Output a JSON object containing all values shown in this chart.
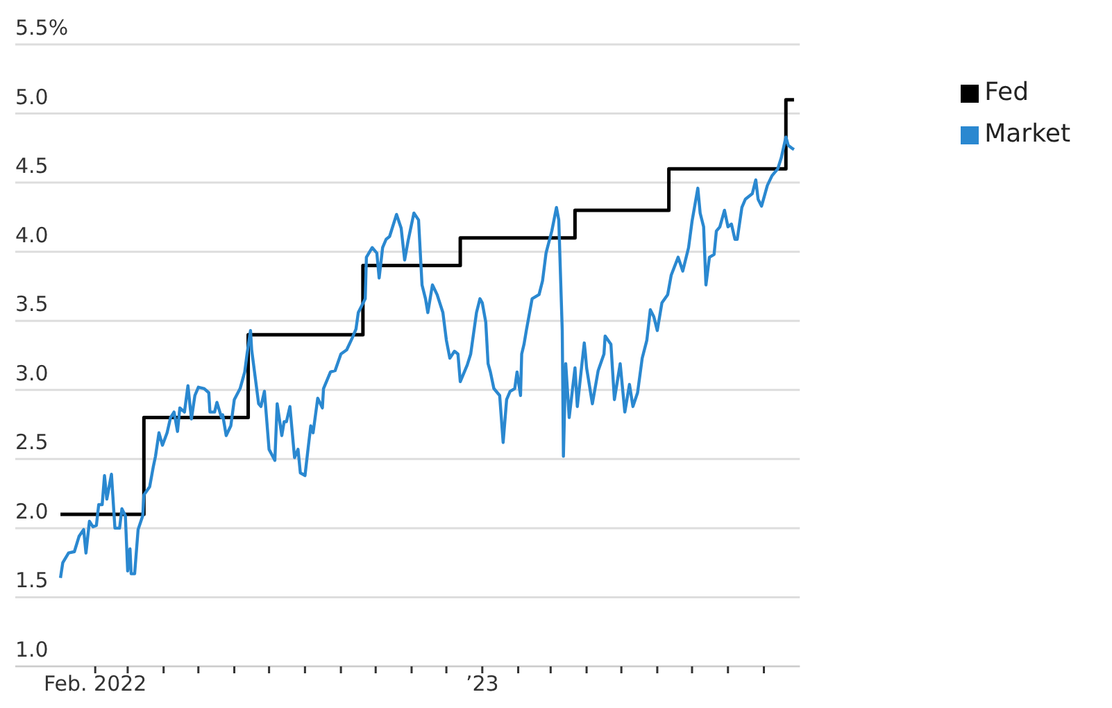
{
  "chart_data": {
    "type": "line",
    "xlim": [
      "2021-11-24",
      "2023-10-02"
    ],
    "xticks": [
      {
        "value": "2022-02-01",
        "label": "Feb. 2022"
      },
      {
        "value": "2022-03-01",
        "label": null
      },
      {
        "value": "2022-04-01",
        "label": null
      },
      {
        "value": "2022-05-01",
        "label": null
      },
      {
        "value": "2022-06-01",
        "label": null
      },
      {
        "value": "2022-07-01",
        "label": null
      },
      {
        "value": "2022-08-01",
        "label": null
      },
      {
        "value": "2022-09-01",
        "label": null
      },
      {
        "value": "2022-10-01",
        "label": null
      },
      {
        "value": "2022-11-01",
        "label": null
      },
      {
        "value": "2022-12-01",
        "label": null
      },
      {
        "value": "2023-01-01",
        "label": "’23"
      },
      {
        "value": "2023-02-01",
        "label": null
      },
      {
        "value": "2023-03-01",
        "label": null
      },
      {
        "value": "2023-04-01",
        "label": null
      },
      {
        "value": "2023-05-01",
        "label": null
      },
      {
        "value": "2023-06-01",
        "label": null
      },
      {
        "value": "2023-07-01",
        "label": null
      },
      {
        "value": "2023-08-01",
        "label": null
      },
      {
        "value": "2023-09-01",
        "label": null
      }
    ],
    "ylim": [
      1.0,
      5.5
    ],
    "yticks": [
      {
        "value": 1,
        "label": "1.0"
      },
      {
        "value": 1.5,
        "label": "1.5"
      },
      {
        "value": 2,
        "label": "2.0"
      },
      {
        "value": 2.5,
        "label": "2.5"
      },
      {
        "value": 3,
        "label": "3.0"
      },
      {
        "value": 3.5,
        "label": "3.5"
      },
      {
        "value": 4,
        "label": "4.0"
      },
      {
        "value": 4.5,
        "label": "4.5"
      },
      {
        "value": 5,
        "label": "5.0"
      },
      {
        "value": 5.5,
        "label": "5.5%"
      }
    ],
    "grid": "y",
    "legend": "top right",
    "marker": "none",
    "series": [
      {
        "name": "Fed",
        "type": "step",
        "color": "#000000",
        "x": [
          "2022-01-02",
          "2022-03-15",
          "2022-06-13",
          "2022-09-20",
          "2022-12-13",
          "2023-03-22",
          "2023-06-11",
          "2023-09-20",
          "2023-09-27"
        ],
        "values": [
          2.1,
          2.8,
          3.4,
          3.9,
          4.1,
          4.3,
          4.6,
          5.1,
          5.1
        ]
      },
      {
        "name": "Market",
        "type": "line",
        "color": "#2a88d0",
        "x": [
          "2022-01-02",
          "2022-01-04",
          "2022-01-09",
          "2022-01-14",
          "2022-01-18",
          "2022-01-22",
          "2022-01-24",
          "2022-01-27",
          "2022-01-30",
          "2022-02-02",
          "2022-02-04",
          "2022-02-07",
          "2022-02-09",
          "2022-02-11",
          "2022-02-15",
          "2022-02-18",
          "2022-02-22",
          "2022-02-24",
          "2022-02-27",
          "2022-03-01",
          "2022-03-03",
          "2022-03-04",
          "2022-03-07",
          "2022-03-10",
          "2022-03-14",
          "2022-03-15",
          "2022-03-20",
          "2022-03-23",
          "2022-03-25",
          "2022-03-28",
          "2022-03-31",
          "2022-04-04",
          "2022-04-07",
          "2022-04-10",
          "2022-04-13",
          "2022-04-15",
          "2022-04-19",
          "2022-04-22",
          "2022-04-25",
          "2022-04-28",
          "2022-05-01",
          "2022-05-06",
          "2022-05-10",
          "2022-05-11",
          "2022-05-15",
          "2022-05-17",
          "2022-05-21",
          "2022-05-22",
          "2022-05-25",
          "2022-05-29",
          "2022-06-01",
          "2022-06-06",
          "2022-06-10",
          "2022-06-12",
          "2022-06-15",
          "2022-06-16",
          "2022-06-22",
          "2022-06-24",
          "2022-06-27",
          "2022-07-01",
          "2022-07-06",
          "2022-07-08",
          "2022-07-12",
          "2022-07-14",
          "2022-07-16",
          "2022-07-19",
          "2022-07-23",
          "2022-07-26",
          "2022-07-28",
          "2022-08-01",
          "2022-08-04",
          "2022-08-06",
          "2022-08-08",
          "2022-08-12",
          "2022-08-16",
          "2022-08-17",
          "2022-08-23",
          "2022-08-27",
          "2022-09-01",
          "2022-09-06",
          "2022-09-11",
          "2022-09-14",
          "2022-09-16",
          "2022-09-22",
          "2022-09-23",
          "2022-09-28",
          "2022-10-02",
          "2022-10-04",
          "2022-10-07",
          "2022-10-10",
          "2022-10-13",
          "2022-10-19",
          "2022-10-23",
          "2022-10-26",
          "2022-10-29",
          "2022-11-03",
          "2022-11-07",
          "2022-11-10",
          "2022-11-13",
          "2022-11-15",
          "2022-11-19",
          "2022-11-23",
          "2022-11-28",
          "2022-12-01",
          "2022-12-04",
          "2022-12-08",
          "2022-12-11",
          "2022-12-13",
          "2022-12-19",
          "2022-12-22",
          "2022-12-27",
          "2022-12-30",
          "2023-01-01",
          "2023-01-04",
          "2023-01-06",
          "2023-01-08",
          "2023-01-11",
          "2023-01-16",
          "2023-01-19",
          "2023-01-22",
          "2023-01-25",
          "2023-01-29",
          "2023-01-31",
          "2023-02-03",
          "2023-02-04",
          "2023-02-06",
          "2023-02-08",
          "2023-02-13",
          "2023-02-19",
          "2023-02-22",
          "2023-02-25",
          "2023-03-02",
          "2023-03-06",
          "2023-03-08",
          "2023-03-11",
          "2023-03-12",
          "2023-03-14",
          "2023-03-17",
          "2023-03-22",
          "2023-03-24",
          "2023-03-28",
          "2023-03-30",
          "2023-03-31",
          "2023-04-01",
          "2023-04-06",
          "2023-04-11",
          "2023-04-16",
          "2023-04-17",
          "2023-04-22",
          "2023-04-25",
          "2023-04-30",
          "2023-05-04",
          "2023-05-08",
          "2023-05-11",
          "2023-05-15",
          "2023-05-19",
          "2023-05-23",
          "2023-05-26",
          "2023-05-29",
          "2023-06-01",
          "2023-06-05",
          "2023-06-10",
          "2023-06-13",
          "2023-06-19",
          "2023-06-23",
          "2023-06-28",
          "2023-07-01",
          "2023-07-06",
          "2023-07-08",
          "2023-07-11",
          "2023-07-13",
          "2023-07-16",
          "2023-07-20",
          "2023-07-22",
          "2023-07-25",
          "2023-07-29",
          "2023-08-01",
          "2023-08-04",
          "2023-08-07",
          "2023-08-09",
          "2023-08-13",
          "2023-08-16",
          "2023-08-22",
          "2023-08-25",
          "2023-08-27",
          "2023-08-30",
          "2023-09-04",
          "2023-09-08",
          "2023-09-13",
          "2023-09-16",
          "2023-09-20",
          "2023-09-22",
          "2023-09-25",
          "2023-09-27"
        ],
        "values": [
          1.64,
          1.75,
          1.82,
          1.83,
          1.94,
          1.99,
          1.82,
          2.05,
          2.01,
          2.02,
          2.17,
          2.17,
          2.38,
          2.21,
          2.39,
          2.0,
          2.0,
          2.14,
          2.09,
          1.69,
          1.85,
          1.67,
          1.67,
          1.99,
          2.09,
          2.24,
          2.3,
          2.44,
          2.52,
          2.69,
          2.6,
          2.69,
          2.8,
          2.84,
          2.7,
          2.87,
          2.84,
          3.03,
          2.79,
          2.96,
          3.02,
          3.01,
          2.98,
          2.84,
          2.84,
          2.91,
          2.8,
          2.82,
          2.67,
          2.74,
          2.93,
          3.01,
          3.13,
          3.26,
          3.43,
          3.29,
          2.9,
          2.88,
          2.99,
          2.57,
          2.49,
          2.9,
          2.67,
          2.77,
          2.77,
          2.88,
          2.51,
          2.57,
          2.4,
          2.38,
          2.6,
          2.74,
          2.69,
          2.94,
          2.87,
          3.01,
          3.13,
          3.14,
          3.26,
          3.29,
          3.38,
          3.44,
          3.56,
          3.66,
          3.96,
          4.03,
          3.99,
          3.81,
          4.03,
          4.09,
          4.11,
          4.27,
          4.17,
          3.94,
          4.08,
          4.28,
          4.23,
          3.76,
          3.66,
          3.56,
          3.76,
          3.69,
          3.56,
          3.36,
          3.23,
          3.28,
          3.26,
          3.06,
          3.18,
          3.26,
          3.56,
          3.66,
          3.63,
          3.49,
          3.19,
          3.13,
          3.01,
          2.96,
          2.62,
          2.93,
          2.99,
          3.01,
          3.13,
          2.96,
          3.26,
          3.33,
          3.43,
          3.66,
          3.69,
          3.79,
          3.99,
          4.15,
          4.32,
          4.23,
          3.43,
          2.52,
          3.19,
          2.8,
          3.16,
          2.88,
          3.19,
          3.34,
          3.26,
          3.16,
          2.9,
          3.14,
          3.26,
          3.39,
          3.33,
          2.93,
          3.19,
          2.84,
          3.04,
          2.88,
          2.98,
          3.23,
          3.36,
          3.58,
          3.53,
          3.43,
          3.63,
          3.69,
          3.83,
          3.96,
          3.86,
          4.03,
          4.22,
          4.46,
          4.28,
          4.18,
          3.76,
          3.96,
          3.98,
          4.15,
          4.18,
          4.3,
          4.18,
          4.2,
          4.09,
          4.09,
          4.32,
          4.38,
          4.42,
          4.52,
          4.38,
          4.33,
          4.48,
          4.55,
          4.6,
          4.68,
          4.83,
          4.77,
          4.75,
          4.74
        ]
      }
    ]
  }
}
